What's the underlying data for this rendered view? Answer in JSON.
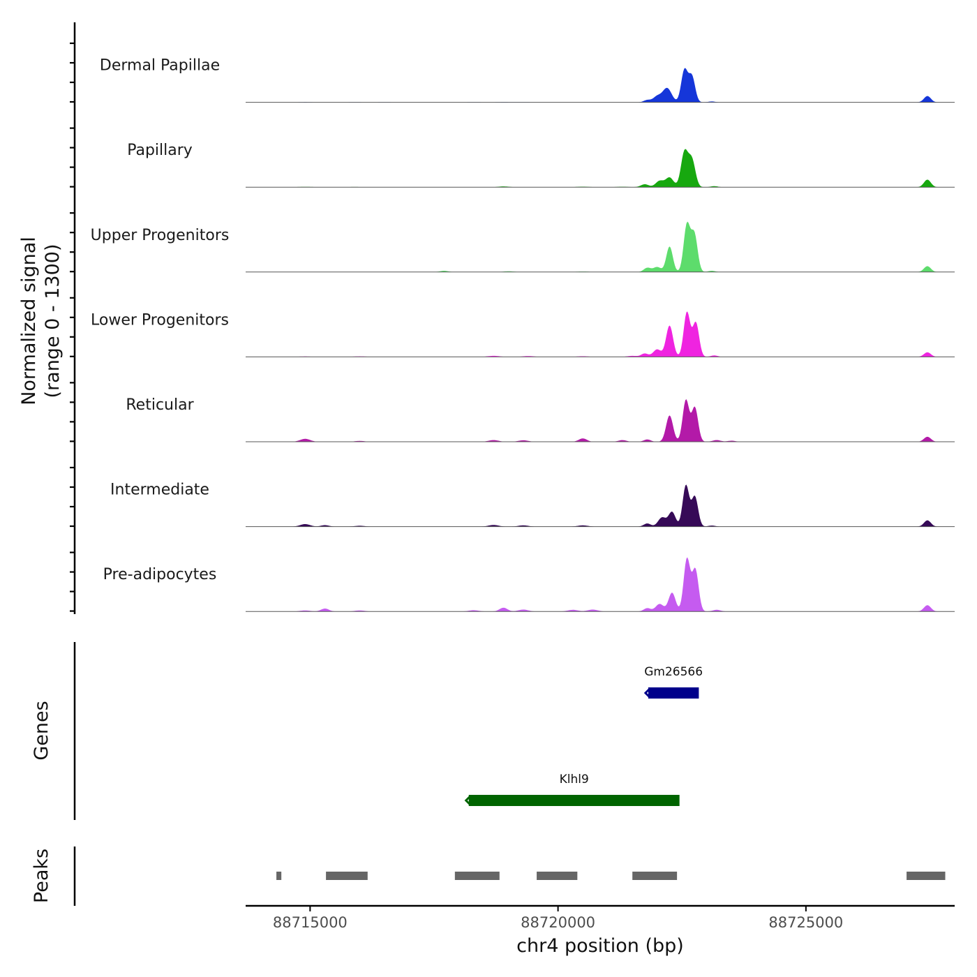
{
  "chart_data": {
    "type": "area",
    "chromosome": "chr4",
    "xlabel": "chr4 position (bp)",
    "xlim": [
      88713700,
      88728000
    ],
    "x_ticks": [
      "88715000",
      "88720000",
      "88725000"
    ],
    "x_tick_values": [
      88715000,
      88720000,
      88725000
    ],
    "signal_axis_title": [
      "Normalized signal",
      "(range 0 - 1300)"
    ],
    "signal_range": [
      0,
      1300
    ],
    "genes_axis_title": "Genes",
    "peaks_axis_title": "Peaks",
    "series": [
      {
        "name": "Dermal Papillae",
        "color": "#1536d9",
        "peaks": [
          {
            "pos": 88714900,
            "height": 5,
            "width": 120
          },
          {
            "pos": 88715900,
            "height": 4,
            "width": 150
          },
          {
            "pos": 88716500,
            "height": 4,
            "width": 150
          },
          {
            "pos": 88718300,
            "height": 4,
            "width": 150
          },
          {
            "pos": 88718900,
            "height": 5,
            "width": 150
          },
          {
            "pos": 88719300,
            "height": 4,
            "width": 150
          },
          {
            "pos": 88721800,
            "height": 55,
            "width": 70
          },
          {
            "pos": 88722000,
            "height": 140,
            "width": 80
          },
          {
            "pos": 88722200,
            "height": 340,
            "width": 90
          },
          {
            "pos": 88722550,
            "height": 770,
            "width": 65
          },
          {
            "pos": 88722700,
            "height": 620,
            "width": 65
          },
          {
            "pos": 88723100,
            "height": 20,
            "width": 70
          },
          {
            "pos": 88727450,
            "height": 150,
            "width": 70
          }
        ]
      },
      {
        "name": "Papillary",
        "color": "#17a80f",
        "peaks": [
          {
            "pos": 88714900,
            "height": 8,
            "width": 150
          },
          {
            "pos": 88715900,
            "height": 5,
            "width": 150
          },
          {
            "pos": 88718900,
            "height": 18,
            "width": 100
          },
          {
            "pos": 88720500,
            "height": 12,
            "width": 120
          },
          {
            "pos": 88721300,
            "height": 10,
            "width": 120
          },
          {
            "pos": 88721750,
            "height": 70,
            "width": 80
          },
          {
            "pos": 88722050,
            "height": 150,
            "width": 80
          },
          {
            "pos": 88722250,
            "height": 230,
            "width": 80
          },
          {
            "pos": 88722550,
            "height": 830,
            "width": 70
          },
          {
            "pos": 88722700,
            "height": 650,
            "width": 70
          },
          {
            "pos": 88723150,
            "height": 25,
            "width": 70
          },
          {
            "pos": 88727450,
            "height": 180,
            "width": 70
          }
        ]
      },
      {
        "name": "Upper Progenitors",
        "color": "#5ddc6c",
        "peaks": [
          {
            "pos": 88714900,
            "height": 5,
            "width": 150
          },
          {
            "pos": 88717700,
            "height": 30,
            "width": 80
          },
          {
            "pos": 88719000,
            "height": 18,
            "width": 100
          },
          {
            "pos": 88720500,
            "height": 12,
            "width": 120
          },
          {
            "pos": 88721800,
            "height": 100,
            "width": 70
          },
          {
            "pos": 88722000,
            "height": 120,
            "width": 80
          },
          {
            "pos": 88722250,
            "height": 610,
            "width": 65
          },
          {
            "pos": 88722600,
            "height": 1130,
            "width": 65
          },
          {
            "pos": 88722750,
            "height": 900,
            "width": 65
          },
          {
            "pos": 88723100,
            "height": 30,
            "width": 70
          },
          {
            "pos": 88727450,
            "height": 140,
            "width": 70
          }
        ]
      },
      {
        "name": "Lower Progenitors",
        "color": "#ef24e0",
        "peaks": [
          {
            "pos": 88714900,
            "height": 10,
            "width": 150
          },
          {
            "pos": 88716000,
            "height": 12,
            "width": 150
          },
          {
            "pos": 88718700,
            "height": 25,
            "width": 120
          },
          {
            "pos": 88719400,
            "height": 20,
            "width": 120
          },
          {
            "pos": 88720500,
            "height": 15,
            "width": 120
          },
          {
            "pos": 88721500,
            "height": 25,
            "width": 100
          },
          {
            "pos": 88721750,
            "height": 80,
            "width": 70
          },
          {
            "pos": 88722000,
            "height": 180,
            "width": 80
          },
          {
            "pos": 88722250,
            "height": 750,
            "width": 70
          },
          {
            "pos": 88722600,
            "height": 1070,
            "width": 65
          },
          {
            "pos": 88722780,
            "height": 820,
            "width": 65
          },
          {
            "pos": 88723150,
            "height": 35,
            "width": 70
          },
          {
            "pos": 88727450,
            "height": 110,
            "width": 70
          }
        ]
      },
      {
        "name": "Reticular",
        "color": "#b31aa8",
        "peaks": [
          {
            "pos": 88714900,
            "height": 70,
            "width": 100
          },
          {
            "pos": 88716000,
            "height": 20,
            "width": 100
          },
          {
            "pos": 88718700,
            "height": 40,
            "width": 100
          },
          {
            "pos": 88719300,
            "height": 35,
            "width": 100
          },
          {
            "pos": 88720500,
            "height": 80,
            "width": 80
          },
          {
            "pos": 88721300,
            "height": 40,
            "width": 80
          },
          {
            "pos": 88721800,
            "height": 55,
            "width": 70
          },
          {
            "pos": 88722250,
            "height": 630,
            "width": 70
          },
          {
            "pos": 88722580,
            "height": 1000,
            "width": 65
          },
          {
            "pos": 88722760,
            "height": 820,
            "width": 65
          },
          {
            "pos": 88723200,
            "height": 40,
            "width": 80
          },
          {
            "pos": 88723500,
            "height": 25,
            "width": 80
          },
          {
            "pos": 88727450,
            "height": 120,
            "width": 70
          }
        ]
      },
      {
        "name": "Intermediate",
        "color": "#360a57",
        "peaks": [
          {
            "pos": 88714900,
            "height": 60,
            "width": 100
          },
          {
            "pos": 88715300,
            "height": 35,
            "width": 80
          },
          {
            "pos": 88716000,
            "height": 20,
            "width": 100
          },
          {
            "pos": 88718700,
            "height": 40,
            "width": 100
          },
          {
            "pos": 88719300,
            "height": 30,
            "width": 100
          },
          {
            "pos": 88720500,
            "height": 30,
            "width": 100
          },
          {
            "pos": 88721800,
            "height": 75,
            "width": 70
          },
          {
            "pos": 88722100,
            "height": 220,
            "width": 80
          },
          {
            "pos": 88722300,
            "height": 350,
            "width": 70
          },
          {
            "pos": 88722580,
            "height": 990,
            "width": 65
          },
          {
            "pos": 88722760,
            "height": 720,
            "width": 65
          },
          {
            "pos": 88723100,
            "height": 25,
            "width": 70
          },
          {
            "pos": 88727450,
            "height": 150,
            "width": 70
          }
        ]
      },
      {
        "name": "Pre-adipocytes",
        "color": "#c55bf0",
        "peaks": [
          {
            "pos": 88714900,
            "height": 25,
            "width": 100
          },
          {
            "pos": 88715300,
            "height": 70,
            "width": 80
          },
          {
            "pos": 88716000,
            "height": 25,
            "width": 100
          },
          {
            "pos": 88718300,
            "height": 30,
            "width": 100
          },
          {
            "pos": 88718900,
            "height": 90,
            "width": 80
          },
          {
            "pos": 88719300,
            "height": 45,
            "width": 100
          },
          {
            "pos": 88720300,
            "height": 40,
            "width": 100
          },
          {
            "pos": 88720700,
            "height": 45,
            "width": 100
          },
          {
            "pos": 88721800,
            "height": 80,
            "width": 70
          },
          {
            "pos": 88722050,
            "height": 180,
            "width": 80
          },
          {
            "pos": 88722300,
            "height": 450,
            "width": 70
          },
          {
            "pos": 88722600,
            "height": 1260,
            "width": 65
          },
          {
            "pos": 88722770,
            "height": 1000,
            "width": 65
          },
          {
            "pos": 88723200,
            "height": 40,
            "width": 80
          },
          {
            "pos": 88727450,
            "height": 150,
            "width": 70
          }
        ]
      }
    ],
    "genes": [
      {
        "name": "Gm26566",
        "start": 88721820,
        "end": 88722840,
        "strand": "-",
        "color": "#00008b",
        "row": 0
      },
      {
        "name": "Klhl9",
        "start": 88718200,
        "end": 88722450,
        "strand": "-",
        "color": "#006400",
        "row": 1
      }
    ],
    "peaks_track": [
      {
        "start": 88714320,
        "end": 88714420
      },
      {
        "start": 88715320,
        "end": 88716160
      },
      {
        "start": 88717920,
        "end": 88718820
      },
      {
        "start": 88719570,
        "end": 88720390
      },
      {
        "start": 88721500,
        "end": 88722400
      },
      {
        "start": 88727030,
        "end": 88727810
      }
    ],
    "peaks_color": "#666666"
  }
}
